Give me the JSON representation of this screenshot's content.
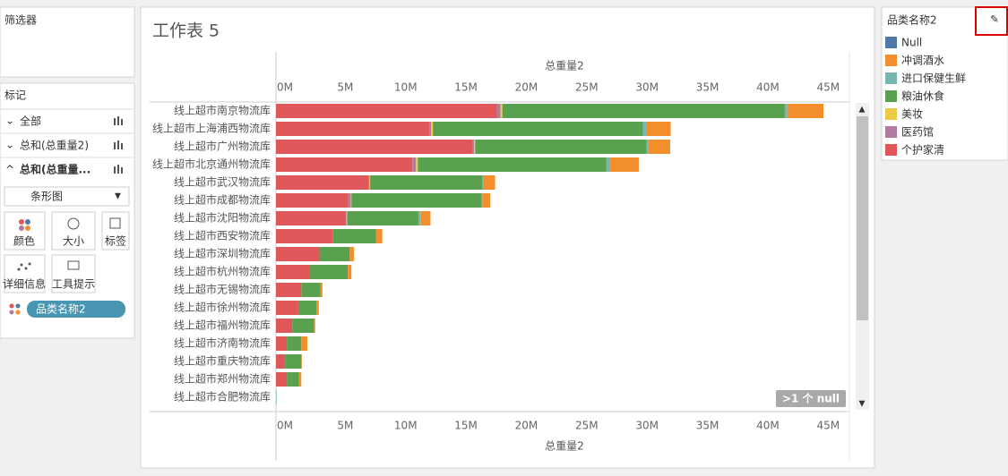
{
  "left_panel": {
    "filters_title": "筛选器",
    "marks_title": "标记",
    "mark_rows": [
      "全部",
      "总和(总重量2)",
      "总和(总重量..."
    ],
    "mark_type": "条形图",
    "buttons": [
      "颜色",
      "大小",
      "标签",
      "详细信息",
      "工具提示"
    ],
    "pill": "品类名称2"
  },
  "null_badge": ">1 个 null",
  "legend_title": "品类名称2",
  "chart_data": {
    "type": "stacked-bar-horizontal",
    "title": "工作表 5",
    "x_label": "总重量2",
    "categories": [
      "线上超市南京物流库",
      "线上超市上海浦西物流库",
      "线上超市广州物流库",
      "线上超市北京通州物流库",
      "线上超市武汉物流库",
      "线上超市成都物流库",
      "线上超市沈阳物流库",
      "线上超市西安物流库",
      "线上超市深圳物流库",
      "线上超市杭州物流库",
      "线上超市无锡物流库",
      "线上超市徐州物流库",
      "线上超市福州物流库",
      "线上超市济南物流库",
      "线上超市重庆物流库",
      "线上超市郑州物流库",
      "线上超市合肥物流库"
    ],
    "series": [
      {
        "name": "Null",
        "color": "#4e79a7",
        "values": [
          0,
          0,
          0,
          0,
          0,
          0,
          0,
          0,
          0,
          0,
          0,
          0,
          0,
          0,
          0,
          0,
          0
        ]
      },
      {
        "name": "冲调酒水",
        "color": "#f28e2b",
        "values": [
          3000000,
          2000000,
          1800000,
          2400000,
          1000000,
          650000,
          800000,
          500000,
          350000,
          300000,
          150000,
          200000,
          100000,
          500000,
          50000,
          200000,
          0
        ]
      },
      {
        "name": "进口保健生鲜",
        "color": "#76b7b2",
        "values": [
          200000,
          300000,
          150000,
          300000,
          50000,
          50000,
          200000,
          0,
          0,
          0,
          0,
          0,
          0,
          0,
          0,
          0,
          50000
        ]
      },
      {
        "name": "粮油休食",
        "color": "#59a14f",
        "values": [
          23400000,
          17400000,
          14200000,
          15600000,
          9300000,
          10800000,
          5900000,
          3600000,
          2500000,
          3200000,
          1600000,
          1500000,
          1800000,
          1200000,
          1350000,
          1000000,
          0
        ]
      },
      {
        "name": "美妆",
        "color": "#edc948",
        "values": [
          150000,
          150000,
          100000,
          150000,
          50000,
          50000,
          50000,
          0,
          0,
          0,
          0,
          0,
          0,
          0,
          0,
          0,
          0
        ]
      },
      {
        "name": "医药馆",
        "color": "#b07aa1",
        "values": [
          300000,
          150000,
          100000,
          300000,
          50000,
          200000,
          50000,
          0,
          0,
          0,
          0,
          0,
          0,
          0,
          0,
          0,
          0
        ]
      },
      {
        "name": "个护家清",
        "color": "#e15759",
        "values": [
          18300000,
          12700000,
          16300000,
          11300000,
          7700000,
          6000000,
          5800000,
          4700000,
          3600000,
          2750000,
          2100000,
          1850000,
          1350000,
          900000,
          750000,
          900000,
          0
        ]
      }
    ],
    "xlim": [
      0,
      47500000
    ],
    "xticks": [
      {
        "value": 0,
        "label": "0M"
      },
      {
        "value": 5000000,
        "label": "5M"
      },
      {
        "value": 10000000,
        "label": "10M"
      },
      {
        "value": 15000000,
        "label": "15M"
      },
      {
        "value": 20000000,
        "label": "20M"
      },
      {
        "value": 25000000,
        "label": "25M"
      },
      {
        "value": 30000000,
        "label": "30M"
      },
      {
        "value": 35000000,
        "label": "35M"
      },
      {
        "value": 40000000,
        "label": "40M"
      },
      {
        "value": 45000000,
        "label": "45M"
      }
    ],
    "grid": false
  }
}
